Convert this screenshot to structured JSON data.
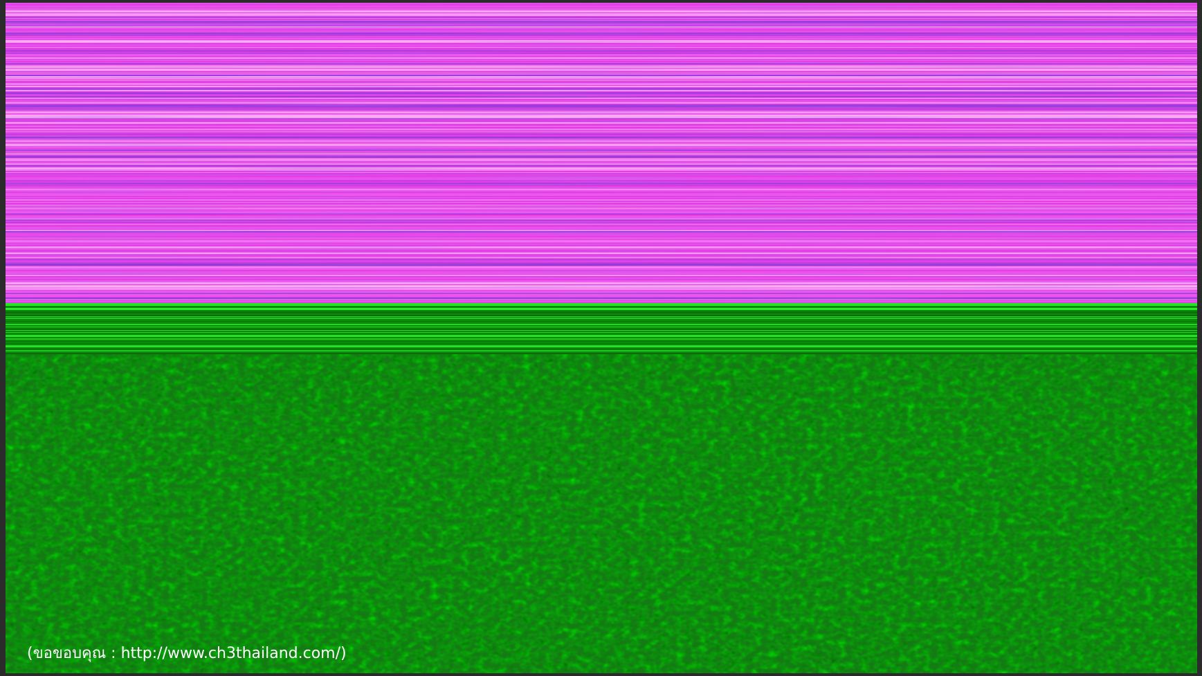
{
  "caption": "(ขอขอบคุณ : http://www.ch3thailand.com/)"
}
